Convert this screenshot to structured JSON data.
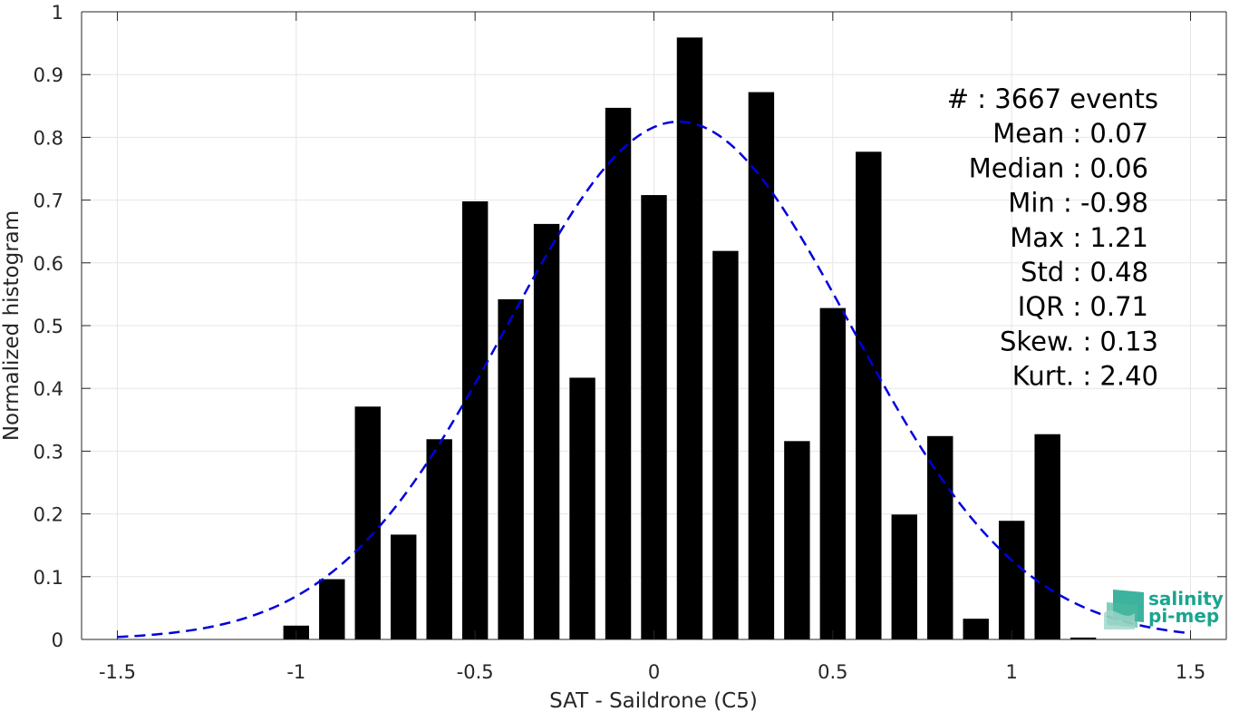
{
  "chart_data": {
    "type": "bar",
    "xlabel": "SAT - Saildrone (C5)",
    "ylabel": "Normalized histogram",
    "xlim": [
      -1.6,
      1.6
    ],
    "ylim": [
      0,
      1
    ],
    "x_ticks": [
      -1.5,
      -1,
      -0.5,
      0,
      0.5,
      1,
      1.5
    ],
    "x_tick_labels": [
      "-1.5",
      "-1",
      "-0.5",
      "0",
      "0.5",
      "1",
      "1.5"
    ],
    "y_ticks": [
      0,
      0.1,
      0.2,
      0.3,
      0.4,
      0.5,
      0.6,
      0.7,
      0.8,
      0.9,
      1
    ],
    "y_tick_labels": [
      "0",
      "0.1",
      "0.2",
      "0.3",
      "0.4",
      "0.5",
      "0.6",
      "0.7",
      "0.8",
      "0.9",
      "1"
    ],
    "grid": true,
    "bar_color": "#000000",
    "bars": {
      "x": [
        -1.0,
        -0.9,
        -0.8,
        -0.7,
        -0.6,
        -0.5,
        -0.4,
        -0.3,
        -0.2,
        -0.1,
        0.0,
        0.1,
        0.2,
        0.3,
        0.4,
        0.5,
        0.6,
        0.7,
        0.8,
        0.9,
        1.0,
        1.1,
        1.2
      ],
      "values": [
        0.022,
        0.096,
        0.371,
        0.167,
        0.319,
        0.698,
        0.542,
        0.662,
        0.417,
        0.847,
        0.708,
        0.959,
        0.619,
        0.872,
        0.316,
        0.528,
        0.777,
        0.199,
        0.324,
        0.033,
        0.189,
        0.327,
        0.003
      ],
      "width": 0.072
    },
    "fit_curve": {
      "style": "dashed",
      "color": "#0000dd",
      "mean": 0.07,
      "std": 0.48,
      "peak": 0.825,
      "x_range": [
        -1.5,
        1.5
      ]
    },
    "stats": [
      "#  : 3667 events",
      "Mean : 0.07",
      "Median : 0.06",
      "Min : -0.98",
      "Max : 1.21",
      "Std : 0.48",
      "IQR : 0.71",
      "Skew. : 0.13",
      "Kurt. : 2.40"
    ]
  },
  "logo": {
    "line1": "salinity",
    "line2": "pi-mep",
    "color": "#1aa58e"
  }
}
